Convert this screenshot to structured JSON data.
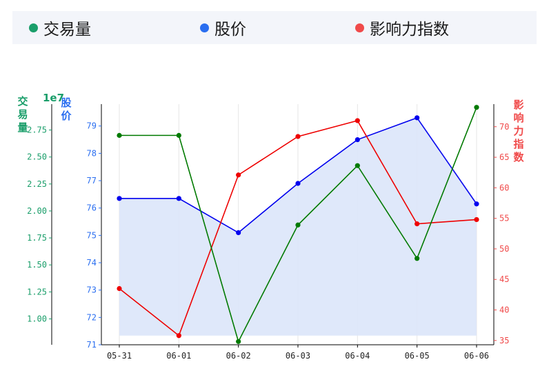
{
  "chart_data": {
    "type": "line",
    "categories": [
      "05-31",
      "06-01",
      "06-02",
      "06-03",
      "06-04",
      "06-05",
      "06-06"
    ],
    "series": [
      {
        "name": "交易量",
        "axis": "left-outer",
        "color": "#1a9e6a",
        "line_color": "#007a00",
        "values": [
          27000000,
          27000000,
          7900000,
          18700000,
          24200000,
          15600000,
          29600000
        ]
      },
      {
        "name": "股价",
        "axis": "left-inner",
        "color": "#2a6ef0",
        "line_color": "#0000ee",
        "values": [
          76.35,
          76.35,
          75.1,
          76.9,
          78.5,
          79.3,
          76.15
        ]
      },
      {
        "name": "影响力指数",
        "axis": "right",
        "color": "#f04a4a",
        "line_color": "#ee0000",
        "values": [
          43.5,
          35.8,
          62.1,
          68.4,
          71.0,
          54.1,
          54.8
        ]
      }
    ],
    "axes": {
      "left_outer": {
        "label": "交易量",
        "multiplier": "1e7",
        "ticks": [
          "1.00",
          "1.25",
          "1.50",
          "1.75",
          "2.00",
          "2.25",
          "2.50",
          "2.75"
        ],
        "range": [
          7600000,
          29900000
        ]
      },
      "left_inner": {
        "label": "股价",
        "ticks": [
          "71",
          "72",
          "73",
          "74",
          "75",
          "76",
          "77",
          "78",
          "79"
        ],
        "range": [
          71,
          79.8
        ]
      },
      "right": {
        "label": "影响力指数",
        "ticks": [
          "35",
          "40",
          "45",
          "50",
          "55",
          "60",
          "65",
          "70"
        ],
        "range": [
          34.3,
          73.7
        ]
      }
    },
    "area_fill": {
      "series": "股价",
      "color": "#dce6fa"
    },
    "grid": "vertical",
    "legend": "top"
  }
}
